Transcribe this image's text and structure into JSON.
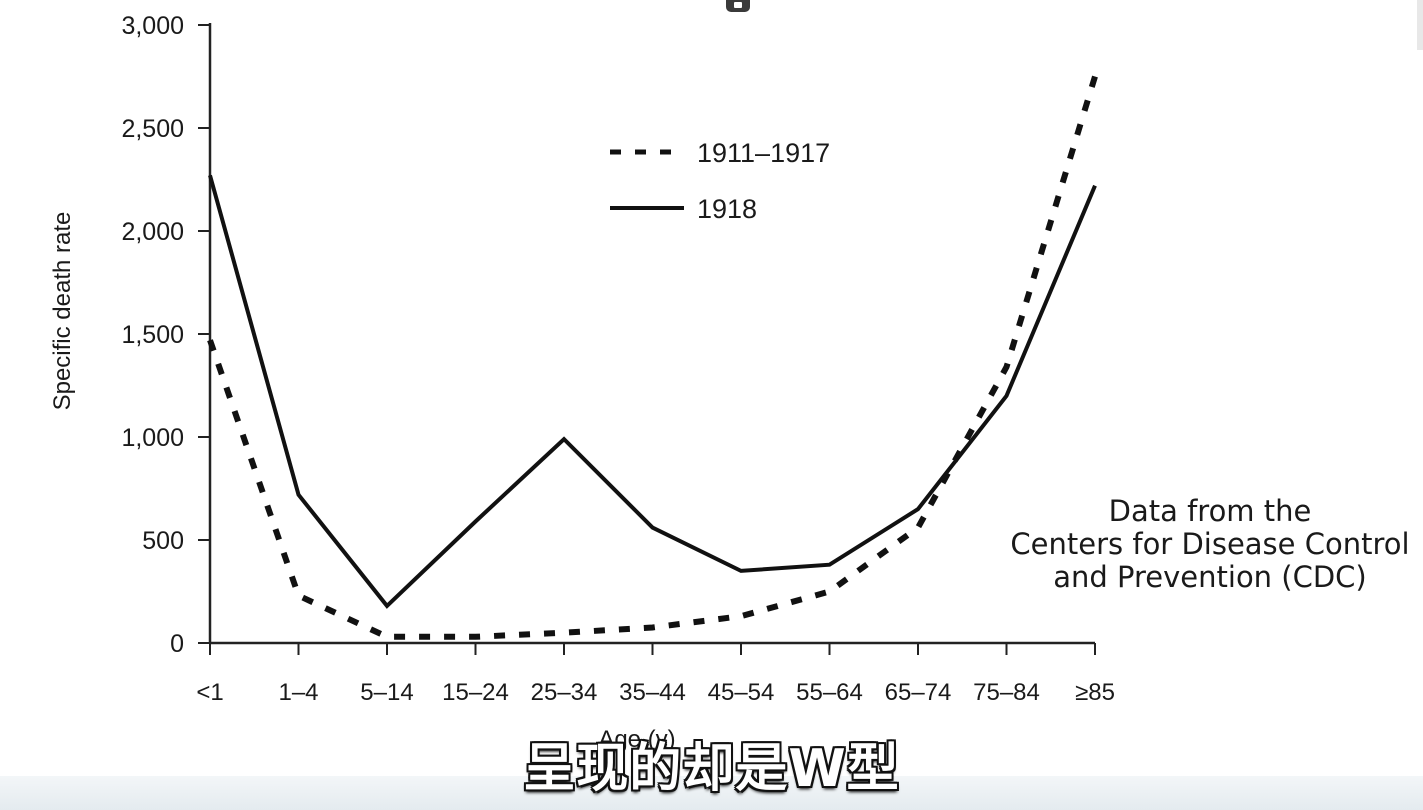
{
  "chart_data": {
    "type": "line",
    "title": "",
    "xlabel": "Age (y)",
    "ylabel": "Specific death rate",
    "categories": [
      "<1",
      "1–4",
      "5–14",
      "15–24",
      "25–34",
      "35–44",
      "45–54",
      "55–64",
      "65–74",
      "75–84",
      "≥85"
    ],
    "y_ticks": [
      0,
      500,
      1000,
      1500,
      2000,
      2500,
      3000
    ],
    "y_tick_labels": [
      "0",
      "500",
      "1,000",
      "1,500",
      "2,000",
      "2,500",
      "3,000"
    ],
    "ylim": [
      0,
      3000
    ],
    "grid": false,
    "legend_position": "top-center",
    "series": [
      {
        "name": "1911–1917",
        "style": "dashed",
        "color": "#111111",
        "values": [
          1470,
          230,
          30,
          30,
          50,
          75,
          130,
          250,
          560,
          1340,
          2750
        ]
      },
      {
        "name": "1918",
        "style": "solid",
        "color": "#111111",
        "values": [
          2270,
          720,
          180,
          590,
          990,
          560,
          350,
          380,
          650,
          1200,
          2220
        ]
      }
    ]
  },
  "source_note": {
    "line1": "Data from the",
    "line2": "Centers for Disease Control",
    "line3": "and Prevention (CDC)"
  },
  "caption": "呈现的却是W型"
}
